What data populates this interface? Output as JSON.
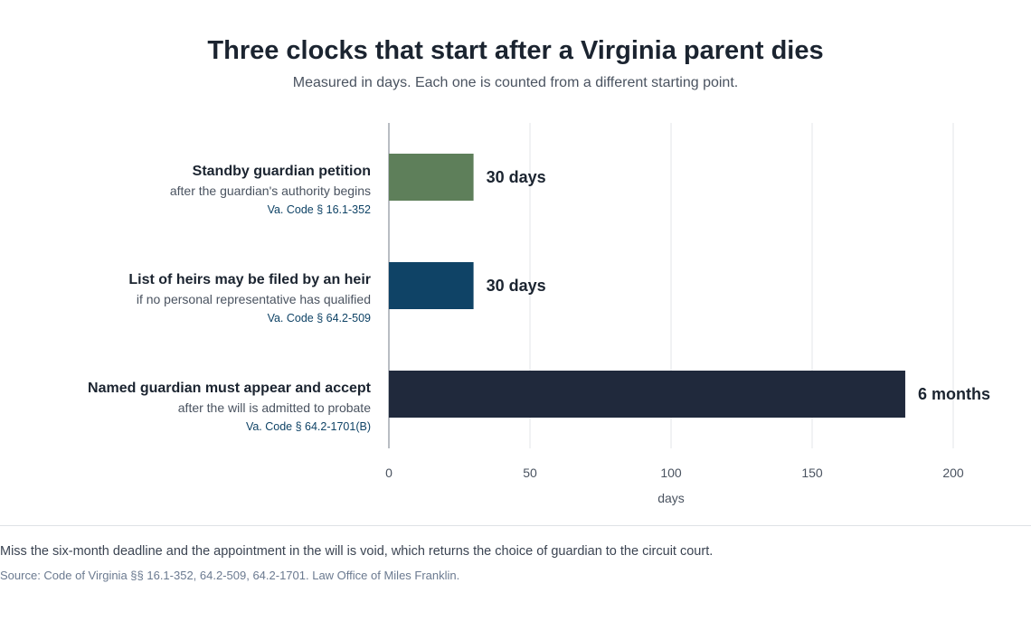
{
  "title": "Three clocks that start after a Virginia parent dies",
  "subtitle": "Measured in days. Each one is counted from a different starting point.",
  "note": "Miss the six-month deadline and the appointment in the will is void, which returns the choice of guardian to the circuit court.",
  "source": "Source: Code of Virginia §§ 16.1-352, 64.2-509, 64.2-1701. Law Office of Miles Franklin.",
  "chart_data": {
    "type": "bar",
    "orientation": "horizontal",
    "xlabel": "days",
    "xlim": [
      0,
      200
    ],
    "xticks": [
      0,
      50,
      100,
      150,
      200
    ],
    "grid": true,
    "categories": [
      "Standby guardian petition",
      "List of heirs may be filed by an heir",
      "Named guardian must appear and accept"
    ],
    "values": [
      30,
      30,
      183
    ],
    "bars": [
      {
        "label": "Standby guardian petition",
        "detail": "after the guardian's authority begins",
        "citation": "Va. Code § 16.1-352",
        "value": 30,
        "value_label": "30 days",
        "color": "#5e7f5a"
      },
      {
        "label": "List of heirs may be filed by an heir",
        "detail": "if no personal representative has qualified",
        "citation": "Va. Code § 64.2-509",
        "value": 30,
        "value_label": "30 days",
        "color": "#0f4366"
      },
      {
        "label": "Named guardian must appear and accept",
        "detail": "after the will is admitted to probate",
        "citation": "Va. Code § 64.2-1701(B)",
        "value": 183,
        "value_label": "6 months",
        "color": "#20293c"
      }
    ],
    "colors": {
      "grid": "#e3e5e8",
      "axis": "#b9bdc3",
      "label": "#1b2430",
      "detail": "#4a5360",
      "citation": "#0f4366",
      "tick": "#4a5360"
    }
  }
}
